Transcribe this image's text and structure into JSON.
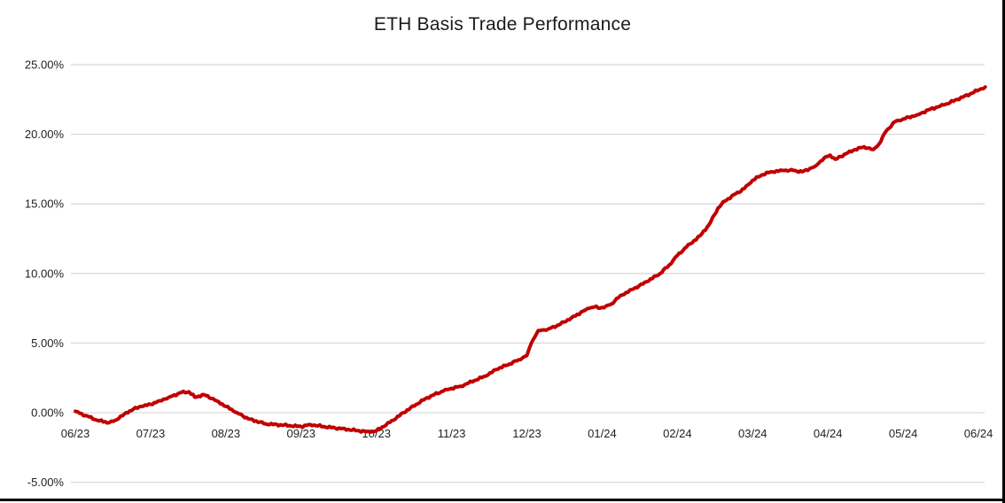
{
  "chart_data": {
    "type": "line",
    "title": "ETH Basis Trade Performance",
    "xlabel": "",
    "ylabel": "",
    "x_tick_labels": [
      "06/23",
      "07/23",
      "08/23",
      "09/23",
      "10/23",
      "11/23",
      "12/23",
      "01/24",
      "02/24",
      "03/24",
      "04/24",
      "05/24",
      "06/24"
    ],
    "y_tick_labels": [
      "25.00%",
      "20.00%",
      "15.00%",
      "10.00%",
      "5.00%",
      "0.00%",
      "-5.00%"
    ],
    "y_tick_values": [
      25,
      20,
      15,
      10,
      5,
      0,
      -5
    ],
    "ylim": [
      -5,
      25
    ],
    "xlim_months": [
      0,
      12.1
    ],
    "grid": "horizontal-only",
    "legend": "none",
    "series": [
      {
        "color": "#C00000",
        "points": [
          [
            0.0,
            0.1
          ],
          [
            0.06,
            -0.05
          ],
          [
            0.18,
            -0.3
          ],
          [
            0.29,
            -0.55
          ],
          [
            0.45,
            -0.72
          ],
          [
            0.53,
            -0.55
          ],
          [
            0.65,
            -0.1
          ],
          [
            0.77,
            0.25
          ],
          [
            0.88,
            0.45
          ],
          [
            1.0,
            0.6
          ],
          [
            1.12,
            0.85
          ],
          [
            1.24,
            1.1
          ],
          [
            1.41,
            1.45
          ],
          [
            1.51,
            1.5
          ],
          [
            1.59,
            1.1
          ],
          [
            1.71,
            1.3
          ],
          [
            1.88,
            0.85
          ],
          [
            2.0,
            0.45
          ],
          [
            2.15,
            0.0
          ],
          [
            2.3,
            -0.45
          ],
          [
            2.53,
            -0.8
          ],
          [
            2.77,
            -0.9
          ],
          [
            3.0,
            -1.0
          ],
          [
            3.12,
            -0.85
          ],
          [
            3.3,
            -1.0
          ],
          [
            3.53,
            -1.15
          ],
          [
            3.77,
            -1.3
          ],
          [
            3.92,
            -1.4
          ],
          [
            4.0,
            -1.3
          ],
          [
            4.18,
            -0.7
          ],
          [
            4.36,
            0.0
          ],
          [
            4.53,
            0.6
          ],
          [
            4.65,
            1.0
          ],
          [
            4.77,
            1.3
          ],
          [
            4.89,
            1.55
          ],
          [
            5.0,
            1.75
          ],
          [
            5.12,
            1.9
          ],
          [
            5.3,
            2.3
          ],
          [
            5.48,
            2.7
          ],
          [
            5.59,
            3.1
          ],
          [
            5.77,
            3.5
          ],
          [
            5.89,
            3.8
          ],
          [
            6.0,
            4.1
          ],
          [
            6.06,
            5.0
          ],
          [
            6.15,
            5.9
          ],
          [
            6.28,
            6.0
          ],
          [
            6.42,
            6.3
          ],
          [
            6.59,
            6.8
          ],
          [
            6.75,
            7.3
          ],
          [
            6.83,
            7.5
          ],
          [
            6.9,
            7.6
          ],
          [
            6.97,
            7.5
          ],
          [
            7.05,
            7.65
          ],
          [
            7.12,
            7.8
          ],
          [
            7.24,
            8.4
          ],
          [
            7.42,
            8.9
          ],
          [
            7.59,
            9.4
          ],
          [
            7.77,
            10.0
          ],
          [
            7.89,
            10.6
          ],
          [
            8.0,
            11.3
          ],
          [
            8.12,
            11.9
          ],
          [
            8.3,
            12.7
          ],
          [
            8.42,
            13.5
          ],
          [
            8.54,
            14.7
          ],
          [
            8.63,
            15.2
          ],
          [
            8.77,
            15.7
          ],
          [
            8.89,
            16.1
          ],
          [
            9.0,
            16.7
          ],
          [
            9.13,
            17.1
          ],
          [
            9.24,
            17.3
          ],
          [
            9.42,
            17.4
          ],
          [
            9.54,
            17.4
          ],
          [
            9.66,
            17.3
          ],
          [
            9.83,
            17.7
          ],
          [
            9.95,
            18.3
          ],
          [
            10.03,
            18.5
          ],
          [
            10.1,
            18.2
          ],
          [
            10.24,
            18.6
          ],
          [
            10.36,
            18.9
          ],
          [
            10.48,
            19.1
          ],
          [
            10.6,
            18.9
          ],
          [
            10.68,
            19.3
          ],
          [
            10.77,
            20.2
          ],
          [
            10.89,
            20.9
          ],
          [
            11.0,
            21.1
          ],
          [
            11.19,
            21.4
          ],
          [
            11.36,
            21.8
          ],
          [
            11.54,
            22.1
          ],
          [
            11.72,
            22.5
          ],
          [
            11.89,
            22.9
          ],
          [
            12.01,
            23.2
          ],
          [
            12.09,
            23.4
          ]
        ]
      }
    ]
  },
  "colors": {
    "line": "#C00000",
    "gridline": "#D9D9D9",
    "label_text": "#1f1f1f",
    "title_text": "#1a1a1a",
    "background": "#FFFFFF",
    "frame_border": "#000000"
  }
}
